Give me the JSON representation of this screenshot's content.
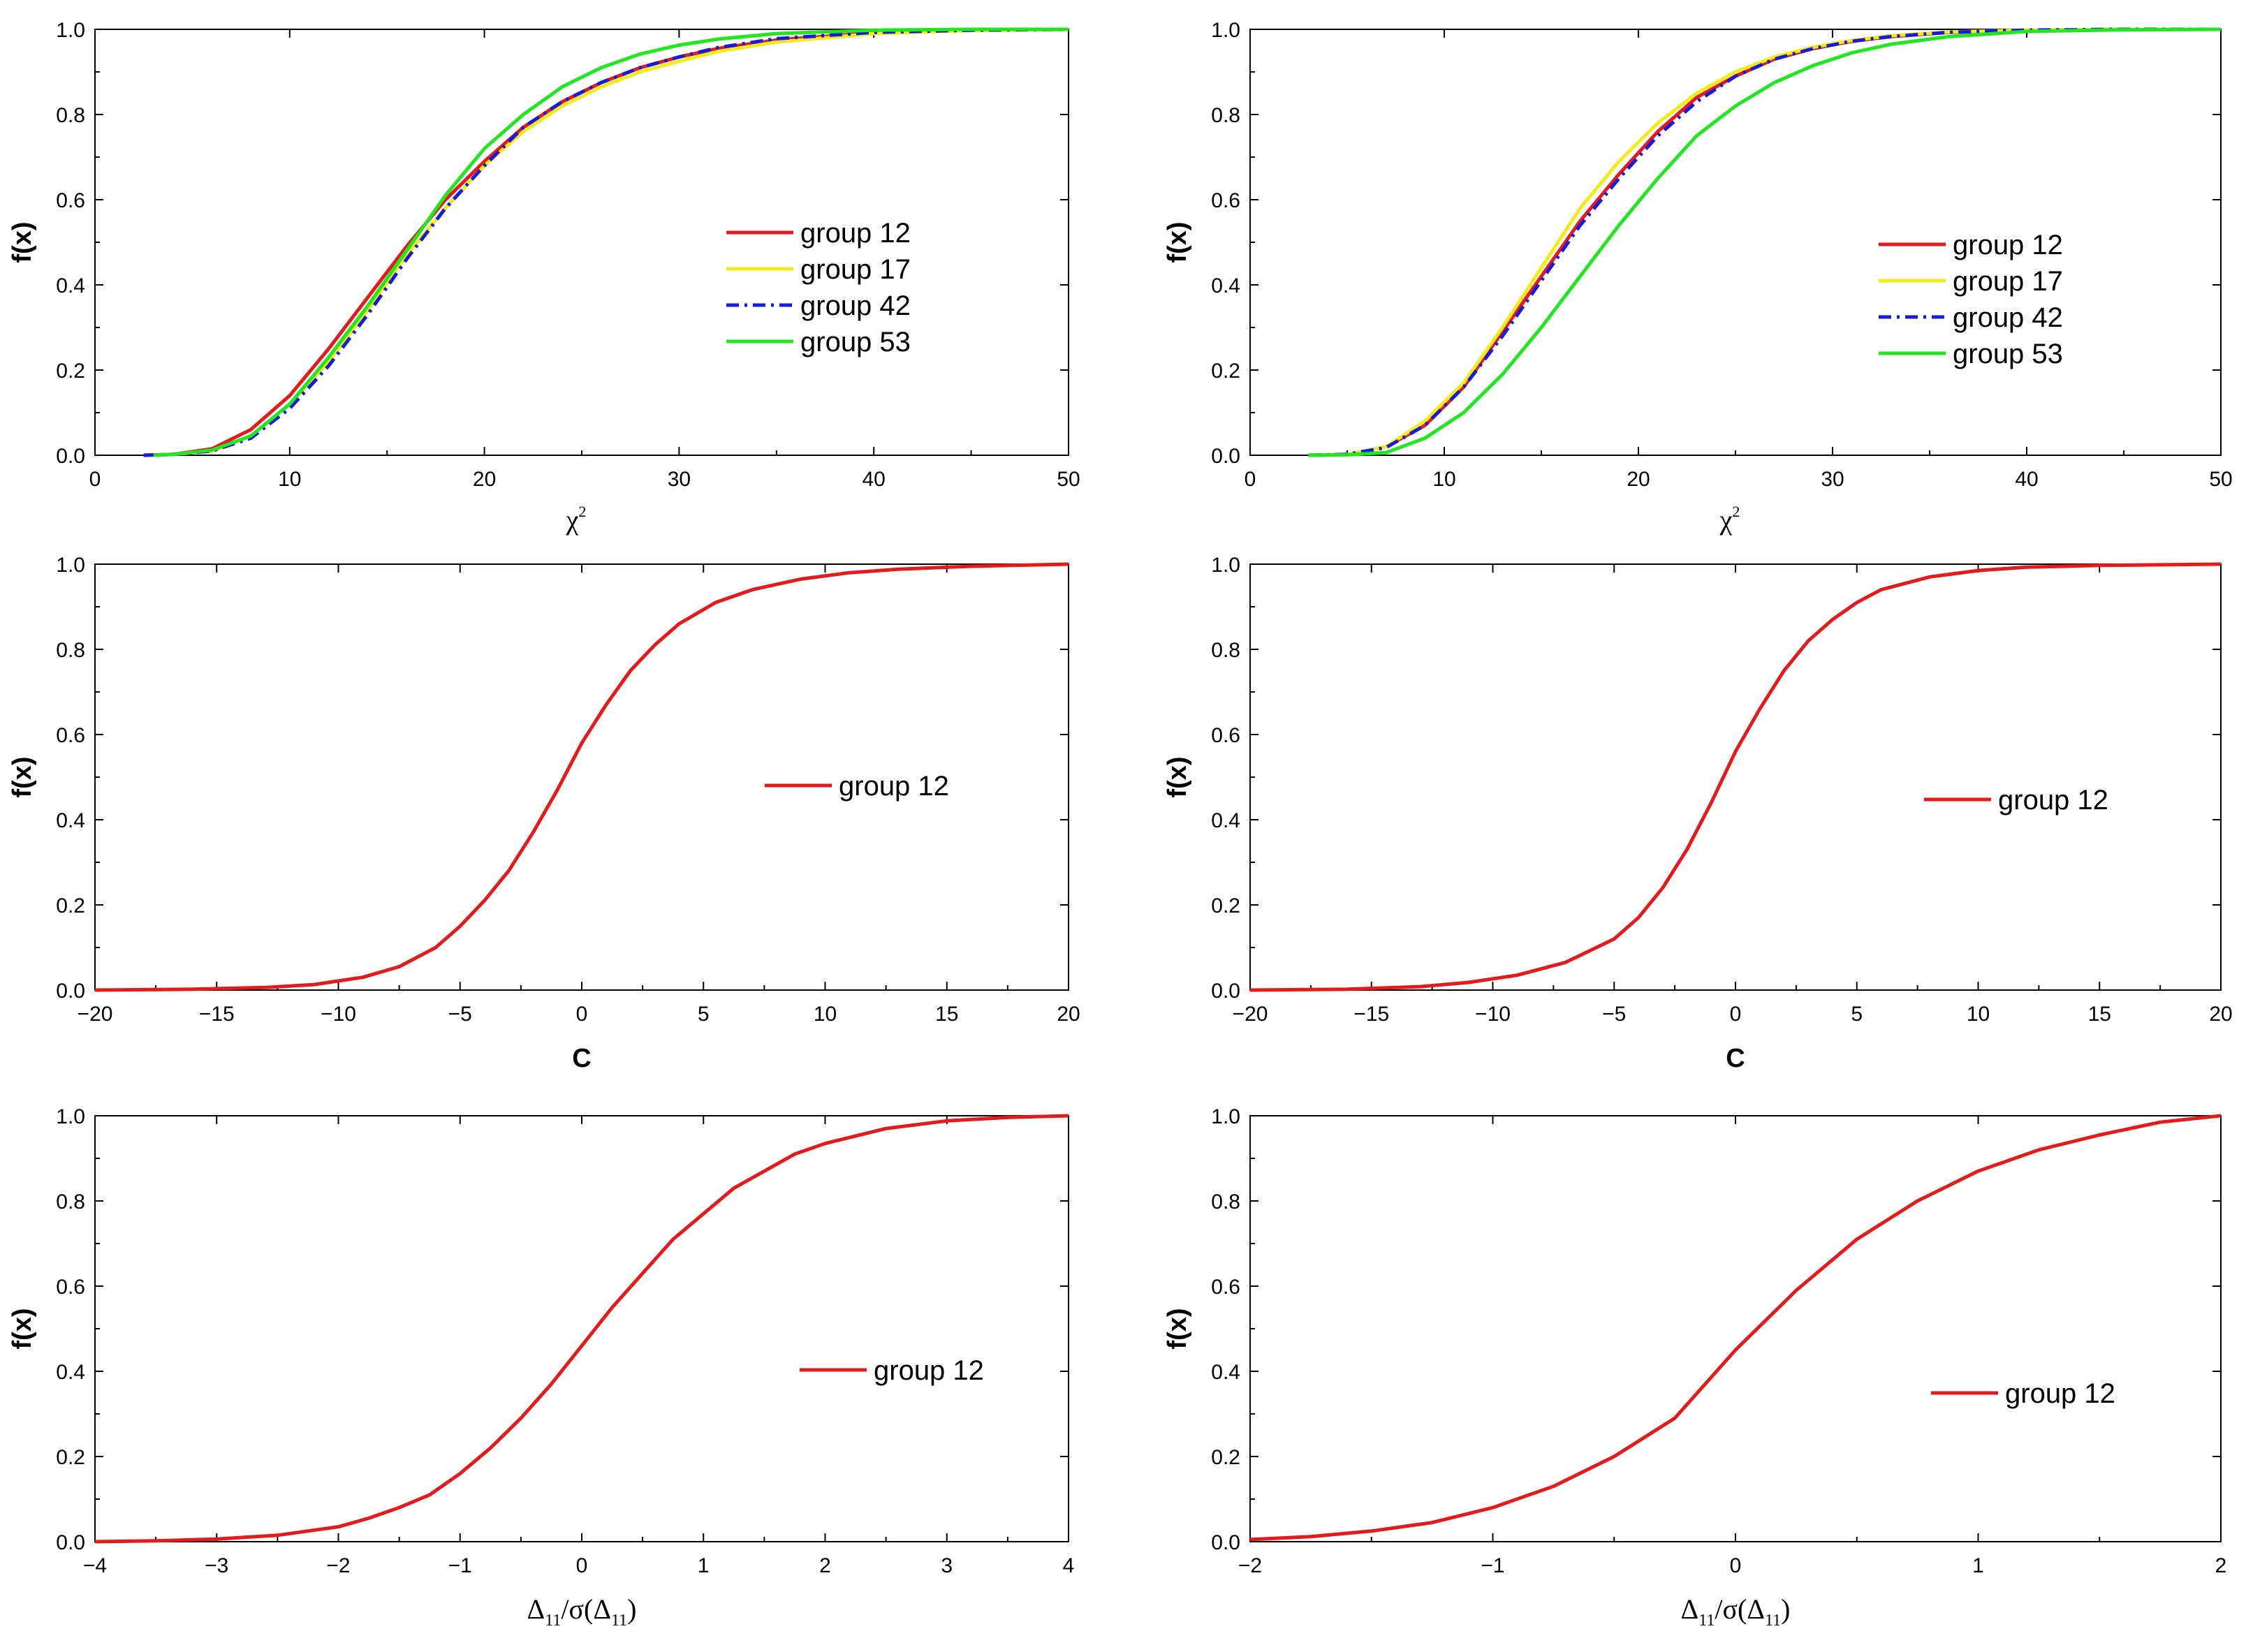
{
  "figure": {
    "title": ""
  },
  "chart_data": [
    {
      "type": "line",
      "panel": "top-left",
      "xlabel": "χ",
      "xlabel_sup": "2",
      "ylabel": "f(x)",
      "xlim": [
        0,
        50
      ],
      "ylim": [
        0,
        1.0
      ],
      "xticks": [
        0,
        10,
        20,
        30,
        40,
        50
      ],
      "xtick_labels": [
        "0",
        "10",
        "20",
        "30",
        "40",
        "50"
      ],
      "yticks": [
        0,
        0.2,
        0.4,
        0.6,
        0.8,
        1.0
      ],
      "ytick_labels": [
        "0.0",
        "0.2",
        "0.4",
        "0.6",
        "0.8",
        "1.0"
      ],
      "legend_position": "right",
      "series": [
        {
          "name": "group 12",
          "color": "#e41a1c",
          "style": "solid",
          "x": [
            2.5,
            4,
            6,
            8,
            10,
            12,
            14,
            16,
            18,
            20,
            22,
            24,
            26,
            28,
            30,
            32,
            35,
            40,
            45,
            50
          ],
          "y": [
            0.0,
            0.002,
            0.015,
            0.06,
            0.14,
            0.25,
            0.37,
            0.49,
            0.6,
            0.69,
            0.77,
            0.83,
            0.875,
            0.91,
            0.935,
            0.955,
            0.975,
            0.992,
            0.998,
            1.0
          ]
        },
        {
          "name": "group 17",
          "color": "#f2ec1c",
          "style": "solid",
          "x": [
            3,
            4,
            6,
            8,
            10,
            12,
            14,
            16,
            18,
            20,
            22,
            24,
            26,
            28,
            30,
            32,
            35,
            40,
            45,
            50
          ],
          "y": [
            0.0,
            0.002,
            0.01,
            0.045,
            0.12,
            0.22,
            0.34,
            0.47,
            0.58,
            0.68,
            0.76,
            0.82,
            0.865,
            0.9,
            0.925,
            0.948,
            0.97,
            0.99,
            0.997,
            1.0
          ]
        },
        {
          "name": "group 42",
          "color": "#1a1adb",
          "style": "dashdot",
          "x": [
            2.5,
            4,
            6,
            8,
            10,
            12,
            14,
            16,
            18,
            20,
            22,
            24,
            26,
            28,
            30,
            32,
            35,
            40,
            45,
            50
          ],
          "y": [
            0.0,
            0.002,
            0.01,
            0.04,
            0.11,
            0.21,
            0.33,
            0.46,
            0.58,
            0.68,
            0.77,
            0.83,
            0.875,
            0.91,
            0.935,
            0.957,
            0.978,
            0.993,
            0.998,
            1.0
          ]
        },
        {
          "name": "group 53",
          "color": "#22e622",
          "style": "solid",
          "x": [
            3,
            4,
            6,
            8,
            10,
            12,
            14,
            16,
            18,
            20,
            22,
            24,
            26,
            28,
            30,
            32,
            35,
            40,
            45,
            50
          ],
          "y": [
            0.0,
            0.002,
            0.012,
            0.045,
            0.12,
            0.23,
            0.35,
            0.48,
            0.61,
            0.72,
            0.8,
            0.865,
            0.91,
            0.942,
            0.963,
            0.977,
            0.99,
            0.998,
            1.0,
            1.0
          ]
        }
      ]
    },
    {
      "type": "line",
      "panel": "top-right",
      "xlabel": "χ",
      "xlabel_sup": "2",
      "ylabel": "f(x)",
      "xlim": [
        0,
        50
      ],
      "ylim": [
        0,
        1.0
      ],
      "xticks": [
        0,
        10,
        20,
        30,
        40,
        50
      ],
      "xtick_labels": [
        "0",
        "10",
        "20",
        "30",
        "40",
        "50"
      ],
      "yticks": [
        0,
        0.2,
        0.4,
        0.6,
        0.8,
        1.0
      ],
      "ytick_labels": [
        "0.0",
        "0.2",
        "0.4",
        "0.6",
        "0.8",
        "1.0"
      ],
      "legend_position": "right",
      "series": [
        {
          "name": "group 12",
          "color": "#e41a1c",
          "style": "solid",
          "x": [
            3,
            5,
            7,
            9,
            11,
            13,
            15,
            17,
            19,
            21,
            23,
            25,
            27,
            29,
            31,
            33,
            36,
            40,
            45,
            50
          ],
          "y": [
            0.0,
            0.002,
            0.02,
            0.07,
            0.16,
            0.29,
            0.42,
            0.55,
            0.66,
            0.76,
            0.84,
            0.89,
            0.93,
            0.955,
            0.972,
            0.983,
            0.993,
            0.998,
            1.0,
            1.0
          ]
        },
        {
          "name": "group 17",
          "color": "#f2ec1c",
          "style": "solid",
          "x": [
            3,
            5,
            7,
            9,
            11,
            13,
            15,
            17,
            19,
            21,
            23,
            25,
            27,
            29,
            31,
            33,
            36,
            40,
            45,
            50
          ],
          "y": [
            0.0,
            0.002,
            0.02,
            0.08,
            0.17,
            0.3,
            0.44,
            0.58,
            0.69,
            0.78,
            0.85,
            0.9,
            0.935,
            0.958,
            0.974,
            0.985,
            0.994,
            0.998,
            1.0,
            1.0
          ]
        },
        {
          "name": "group 42",
          "color": "#1a1adb",
          "style": "dashdot",
          "x": [
            3,
            5,
            7,
            9,
            11,
            13,
            15,
            17,
            19,
            21,
            23,
            25,
            27,
            29,
            31,
            33,
            36,
            40,
            45,
            50
          ],
          "y": [
            0.0,
            0.002,
            0.018,
            0.07,
            0.16,
            0.28,
            0.41,
            0.54,
            0.65,
            0.75,
            0.83,
            0.89,
            0.93,
            0.955,
            0.972,
            0.983,
            0.993,
            0.998,
            1.0,
            1.0
          ]
        },
        {
          "name": "group 53",
          "color": "#22e622",
          "style": "solid",
          "x": [
            3,
            5,
            7,
            9,
            11,
            13,
            15,
            17,
            19,
            21,
            23,
            25,
            27,
            29,
            31,
            33,
            36,
            40,
            45,
            50
          ],
          "y": [
            0.0,
            0.001,
            0.006,
            0.04,
            0.1,
            0.19,
            0.3,
            0.42,
            0.54,
            0.65,
            0.75,
            0.82,
            0.875,
            0.915,
            0.945,
            0.965,
            0.983,
            0.995,
            0.999,
            1.0
          ]
        }
      ]
    },
    {
      "type": "line",
      "panel": "middle-left",
      "xlabel": "C",
      "ylabel": "f(x)",
      "xlim": [
        -20,
        20
      ],
      "ylim": [
        0,
        1.0
      ],
      "xticks": [
        -20,
        -15,
        -10,
        -5,
        0,
        5,
        10,
        15,
        20
      ],
      "xtick_labels": [
        "−20",
        "−15",
        "−10",
        "−5",
        "0",
        "5",
        "10",
        "15",
        "20"
      ],
      "yticks": [
        0,
        0.2,
        0.4,
        0.6,
        0.8,
        1.0
      ],
      "ytick_labels": [
        "0.0",
        "0.2",
        "0.4",
        "0.6",
        "0.8",
        "1.0"
      ],
      "legend_position": "center-right",
      "series": [
        {
          "name": "group 12",
          "color": "#e41a1c",
          "style": "solid",
          "x": [
            -20,
            -16,
            -13,
            -11,
            -9,
            -7.5,
            -6,
            -5,
            -4,
            -3,
            -2,
            -1,
            0,
            1,
            2,
            3,
            4,
            5.5,
            7,
            9,
            11,
            13,
            16,
            20
          ],
          "y": [
            0.0,
            0.002,
            0.006,
            0.013,
            0.03,
            0.055,
            0.1,
            0.15,
            0.21,
            0.28,
            0.37,
            0.47,
            0.58,
            0.67,
            0.75,
            0.81,
            0.86,
            0.91,
            0.94,
            0.965,
            0.98,
            0.988,
            0.995,
            1.0
          ]
        }
      ]
    },
    {
      "type": "line",
      "panel": "middle-right",
      "xlabel": "C",
      "ylabel": "f(x)",
      "xlim": [
        -20,
        20
      ],
      "ylim": [
        0,
        1.0
      ],
      "xticks": [
        -20,
        -15,
        -10,
        -5,
        0,
        5,
        10,
        15,
        20
      ],
      "xtick_labels": [
        "−20",
        "−15",
        "−10",
        "−5",
        "0",
        "5",
        "10",
        "15",
        "20"
      ],
      "yticks": [
        0,
        0.2,
        0.4,
        0.6,
        0.8,
        1.0
      ],
      "ytick_labels": [
        "0.0",
        "0.2",
        "0.4",
        "0.6",
        "0.8",
        "1.0"
      ],
      "legend_position": "center-right",
      "series": [
        {
          "name": "group 12",
          "color": "#e41a1c",
          "style": "solid",
          "x": [
            -20,
            -16,
            -13,
            -11,
            -9,
            -7,
            -5,
            -4,
            -3,
            -2,
            -1,
            0,
            1,
            2,
            3,
            4,
            5,
            6,
            8,
            10,
            12,
            15,
            20
          ],
          "y": [
            0.0,
            0.002,
            0.008,
            0.018,
            0.035,
            0.065,
            0.12,
            0.17,
            0.24,
            0.33,
            0.44,
            0.56,
            0.66,
            0.75,
            0.82,
            0.87,
            0.91,
            0.94,
            0.97,
            0.985,
            0.993,
            0.997,
            1.0
          ]
        }
      ]
    },
    {
      "type": "line",
      "panel": "bottom-left",
      "xlabel": "Δ11/σ(Δ11)",
      "ylabel": "f(x)",
      "xlim": [
        -4,
        4
      ],
      "ylim": [
        0,
        1.0
      ],
      "xticks": [
        -4,
        -3,
        -2,
        -1,
        0,
        1,
        2,
        3,
        4
      ],
      "xtick_labels": [
        "−4",
        "−3",
        "−2",
        "−1",
        "0",
        "1",
        "2",
        "3",
        "4"
      ],
      "yticks": [
        0,
        0.2,
        0.4,
        0.6,
        0.8,
        1.0
      ],
      "ytick_labels": [
        "0.0",
        "0.2",
        "0.4",
        "0.6",
        "0.8",
        "1.0"
      ],
      "legend_position": "center-right",
      "series": [
        {
          "name": "group 12",
          "color": "#e41a1c",
          "style": "solid",
          "x": [
            -4,
            -3.5,
            -3,
            -2.5,
            -2,
            -1.75,
            -1.5,
            -1.25,
            -1,
            -0.75,
            -0.5,
            -0.25,
            0,
            0.25,
            0.5,
            0.75,
            1,
            1.25,
            1.5,
            1.75,
            2,
            2.5,
            3,
            3.5,
            4
          ],
          "y": [
            0.0,
            0.002,
            0.006,
            0.015,
            0.035,
            0.055,
            0.08,
            0.11,
            0.16,
            0.22,
            0.29,
            0.37,
            0.46,
            0.55,
            0.63,
            0.71,
            0.77,
            0.83,
            0.87,
            0.91,
            0.935,
            0.97,
            0.988,
            0.996,
            1.0
          ]
        }
      ]
    },
    {
      "type": "line",
      "panel": "bottom-right",
      "xlabel": "Δ11/σ(Δ11)",
      "ylabel": "f(x)",
      "xlim": [
        -2,
        2
      ],
      "ylim": [
        0,
        1.0
      ],
      "xticks": [
        -2,
        -1,
        0,
        1,
        2
      ],
      "xtick_labels": [
        "−2",
        "−1",
        "0",
        "1",
        "2"
      ],
      "yticks": [
        0,
        0.2,
        0.4,
        0.6,
        0.8,
        1.0
      ],
      "ytick_labels": [
        "0.0",
        "0.2",
        "0.4",
        "0.6",
        "0.8",
        "1.0"
      ],
      "legend_position": "center-right",
      "series": [
        {
          "name": "group 12",
          "color": "#e41a1c",
          "style": "solid",
          "x": [
            -2,
            -1.75,
            -1.5,
            -1.25,
            -1,
            -0.75,
            -0.5,
            -0.25,
            0,
            0.25,
            0.5,
            0.75,
            1,
            1.25,
            1.5,
            1.75,
            2
          ],
          "y": [
            0.005,
            0.012,
            0.025,
            0.045,
            0.08,
            0.13,
            0.2,
            0.29,
            0.45,
            0.59,
            0.71,
            0.8,
            0.87,
            0.92,
            0.955,
            0.985,
            1.0
          ]
        }
      ]
    }
  ]
}
